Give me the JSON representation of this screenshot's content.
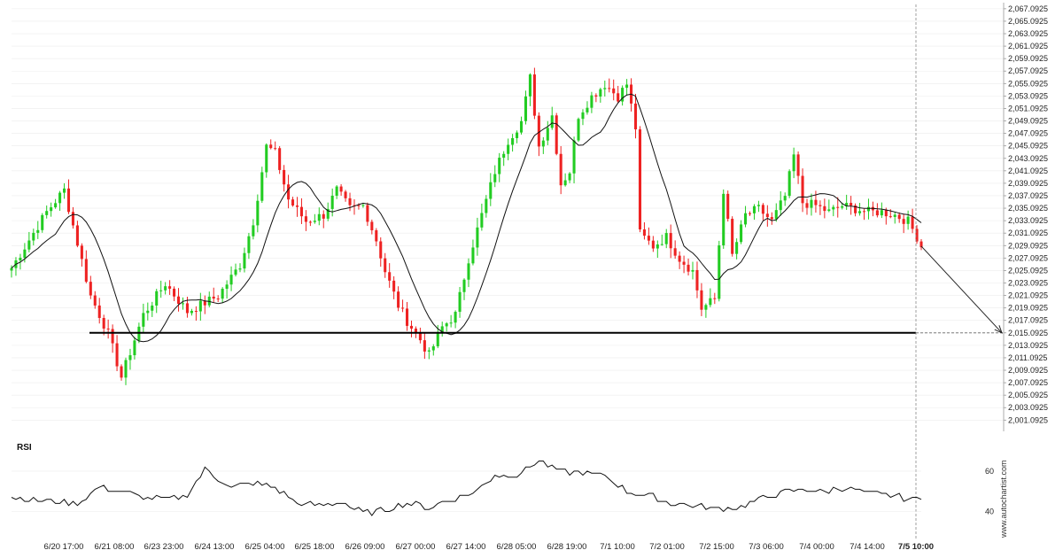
{
  "chart_data": [
    {
      "type": "candlestick",
      "y_axis_position": "right",
      "y_ticks": [
        "2,001.0925",
        "2,003.0925",
        "2,005.0925",
        "2,007.0925",
        "2,009.0925",
        "2,011.0925",
        "2,013.0925",
        "2,015.0925",
        "2,017.0925",
        "2,019.0925",
        "2,021.0925",
        "2,023.0925",
        "2,025.0925",
        "2,027.0925",
        "2,029.0925",
        "2,031.0925",
        "2,033.0925",
        "2,035.0925",
        "2,037.0925",
        "2,039.0925",
        "2,041.0925",
        "2,043.0925",
        "2,045.0925",
        "2,047.0925",
        "2,049.0925",
        "2,051.0925",
        "2,053.0925",
        "2,055.0925",
        "2,057.0925",
        "2,059.0925",
        "2,061.0925",
        "2,063.0925",
        "2,065.0925",
        "2,067.0925"
      ],
      "ylim": [
        2000.0,
        2067.5
      ],
      "x_ticks": [
        "6/20 17:00",
        "6/21 08:00",
        "6/23 23:00",
        "6/24 13:00",
        "6/25 04:00",
        "6/25 18:00",
        "6/26 09:00",
        "6/27 00:00",
        "6/27 14:00",
        "6/28 05:00",
        "6/28 19:00",
        "7/1 10:00",
        "7/2 01:00",
        "7/2 15:00",
        "7/3 06:00",
        "7/4 00:00",
        "7/4 14:00",
        "7/5 10:00"
      ],
      "x_ticks_bold": [
        "7/5 10:00"
      ],
      "key_points": [
        {
          "bar": 0,
          "price": 2025.5
        },
        {
          "bar": 8,
          "price": 2034.5
        },
        {
          "bar": 12,
          "price": 2038.0
        },
        {
          "bar": 18,
          "price": 2021.0
        },
        {
          "bar": 22,
          "price": 2015.0
        },
        {
          "bar": 25,
          "price": 2008.0
        },
        {
          "bar": 30,
          "price": 2018.0
        },
        {
          "bar": 35,
          "price": 2023.0
        },
        {
          "bar": 40,
          "price": 2018.5
        },
        {
          "bar": 47,
          "price": 2021.0
        },
        {
          "bar": 52,
          "price": 2026.0
        },
        {
          "bar": 55,
          "price": 2033.0
        },
        {
          "bar": 58,
          "price": 2045.0
        },
        {
          "bar": 60,
          "price": 2044.0
        },
        {
          "bar": 63,
          "price": 2036.5
        },
        {
          "bar": 67,
          "price": 2033.0
        },
        {
          "bar": 71,
          "price": 2034.0
        },
        {
          "bar": 74,
          "price": 2038.0
        },
        {
          "bar": 77,
          "price": 2035.0
        },
        {
          "bar": 80,
          "price": 2035.5
        },
        {
          "bar": 83,
          "price": 2030.0
        },
        {
          "bar": 85,
          "price": 2025.0
        },
        {
          "bar": 88,
          "price": 2019.5
        },
        {
          "bar": 90,
          "price": 2017.0
        },
        {
          "bar": 93,
          "price": 2014.0
        },
        {
          "bar": 95,
          "price": 2011.5
        },
        {
          "bar": 98,
          "price": 2016.0
        },
        {
          "bar": 101,
          "price": 2018.0
        },
        {
          "bar": 104,
          "price": 2027.0
        },
        {
          "bar": 107,
          "price": 2034.0
        },
        {
          "bar": 110,
          "price": 2041.0
        },
        {
          "bar": 113,
          "price": 2046.0
        },
        {
          "bar": 116,
          "price": 2049.0
        },
        {
          "bar": 118,
          "price": 2056.0
        },
        {
          "bar": 120,
          "price": 2045.0
        },
        {
          "bar": 123,
          "price": 2050.0
        },
        {
          "bar": 125,
          "price": 2039.0
        },
        {
          "bar": 127,
          "price": 2041.0
        },
        {
          "bar": 129,
          "price": 2050.0
        },
        {
          "bar": 132,
          "price": 2053.0
        },
        {
          "bar": 135,
          "price": 2055.0
        },
        {
          "bar": 138,
          "price": 2053.0
        },
        {
          "bar": 140,
          "price": 2055.0
        },
        {
          "bar": 142,
          "price": 2048.0
        },
        {
          "bar": 143,
          "price": 2031.0
        },
        {
          "bar": 146,
          "price": 2029.0
        },
        {
          "bar": 149,
          "price": 2030.5
        },
        {
          "bar": 152,
          "price": 2027.0
        },
        {
          "bar": 155,
          "price": 2025.0
        },
        {
          "bar": 157,
          "price": 2019.0
        },
        {
          "bar": 160,
          "price": 2020.5
        },
        {
          "bar": 162,
          "price": 2038.0
        },
        {
          "bar": 164,
          "price": 2027.5
        },
        {
          "bar": 167,
          "price": 2034.0
        },
        {
          "bar": 170,
          "price": 2035.0
        },
        {
          "bar": 173,
          "price": 2033.0
        },
        {
          "bar": 176,
          "price": 2037.0
        },
        {
          "bar": 178,
          "price": 2043.5
        },
        {
          "bar": 180,
          "price": 2036.0
        },
        {
          "bar": 183,
          "price": 2035.5
        },
        {
          "bar": 186,
          "price": 2034.5
        },
        {
          "bar": 189,
          "price": 2035.5
        },
        {
          "bar": 192,
          "price": 2035.0
        },
        {
          "bar": 195,
          "price": 2034.5
        },
        {
          "bar": 198,
          "price": 2034.5
        },
        {
          "bar": 201,
          "price": 2034.0
        },
        {
          "bar": 204,
          "price": 2033.0
        },
        {
          "bar": 206,
          "price": 2030.5
        },
        {
          "bar": 207,
          "price": 2029.0
        }
      ],
      "moving_average": "smoothed",
      "support_level": 2015.0925,
      "projection": {
        "to_price": 2015.0925
      }
    },
    {
      "type": "line",
      "title": "RSI",
      "y_ticks": [
        "40",
        "60"
      ],
      "ylim": [
        31,
        74
      ],
      "points": [
        {
          "bar": 0,
          "value": 47
        },
        {
          "bar": 4,
          "value": 46
        },
        {
          "bar": 10,
          "value": 45
        },
        {
          "bar": 15,
          "value": 44
        },
        {
          "bar": 20,
          "value": 52
        },
        {
          "bar": 25,
          "value": 50
        },
        {
          "bar": 30,
          "value": 47
        },
        {
          "bar": 35,
          "value": 46
        },
        {
          "bar": 40,
          "value": 48
        },
        {
          "bar": 44,
          "value": 61
        },
        {
          "bar": 50,
          "value": 52
        },
        {
          "bar": 55,
          "value": 54
        },
        {
          "bar": 60,
          "value": 52
        },
        {
          "bar": 65,
          "value": 44
        },
        {
          "bar": 70,
          "value": 43
        },
        {
          "bar": 75,
          "value": 45
        },
        {
          "bar": 80,
          "value": 39
        },
        {
          "bar": 85,
          "value": 41
        },
        {
          "bar": 90,
          "value": 44
        },
        {
          "bar": 95,
          "value": 42
        },
        {
          "bar": 100,
          "value": 46
        },
        {
          "bar": 105,
          "value": 49
        },
        {
          "bar": 110,
          "value": 58
        },
        {
          "bar": 115,
          "value": 58
        },
        {
          "bar": 120,
          "value": 65
        },
        {
          "bar": 125,
          "value": 60
        },
        {
          "bar": 130,
          "value": 59
        },
        {
          "bar": 135,
          "value": 58
        },
        {
          "bar": 140,
          "value": 50
        },
        {
          "bar": 145,
          "value": 48
        },
        {
          "bar": 150,
          "value": 44
        },
        {
          "bar": 155,
          "value": 43
        },
        {
          "bar": 160,
          "value": 41
        },
        {
          "bar": 165,
          "value": 42
        },
        {
          "bar": 170,
          "value": 46
        },
        {
          "bar": 175,
          "value": 49
        },
        {
          "bar": 180,
          "value": 51
        },
        {
          "bar": 185,
          "value": 50
        },
        {
          "bar": 190,
          "value": 52
        },
        {
          "bar": 195,
          "value": 49
        },
        {
          "bar": 200,
          "value": 48
        },
        {
          "bar": 205,
          "value": 46
        },
        {
          "bar": 207,
          "value": 47
        }
      ]
    }
  ],
  "colors": {
    "bull": "#22cc22",
    "bear": "#ee2222",
    "line": "#111111",
    "grid": "#ececec",
    "axis": "#999999"
  },
  "watermark": "www.autochartist.com"
}
